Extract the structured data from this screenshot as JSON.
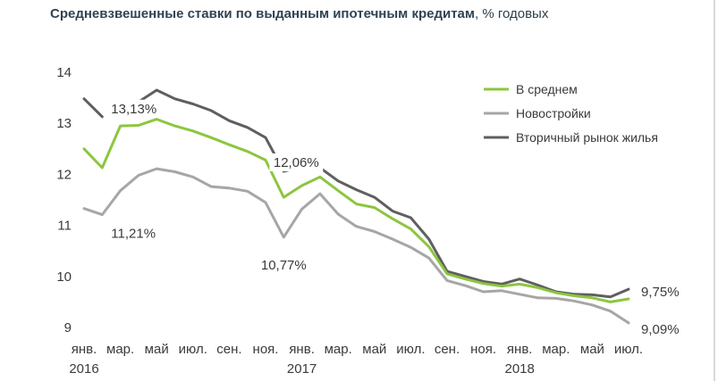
{
  "chart_data": {
    "type": "line",
    "title_bold": "Средневзвешенные ставки по выданным ипотечным кредитам",
    "title_rest": ", % годовых",
    "ylim": [
      9,
      14
    ],
    "yticks": [
      "9",
      "10",
      "11",
      "12",
      "13",
      "14"
    ],
    "x_month_labels": [
      "янв.",
      "мар.",
      "май",
      "июл.",
      "сен.",
      "ноя.",
      "янв.",
      "мар.",
      "май",
      "июл.",
      "сен.",
      "ноя.",
      "янв.",
      "мар.",
      "май",
      "июл."
    ],
    "x_year_labels": [
      "2016",
      "2017",
      "2018"
    ],
    "legend_position": "top-right",
    "series": [
      {
        "name": "В среднем",
        "color": "#8cc63f",
        "values": [
          12.5,
          12.13,
          12.95,
          12.96,
          13.08,
          12.95,
          12.85,
          12.72,
          12.58,
          12.45,
          12.28,
          11.55,
          11.78,
          11.95,
          11.68,
          11.42,
          11.35,
          11.13,
          10.93,
          10.58,
          10.05,
          9.95,
          9.86,
          9.81,
          9.85,
          9.78,
          9.68,
          9.62,
          9.58,
          9.5,
          9.56
        ]
      },
      {
        "name": "Новостройки",
        "color": "#a6a6a6",
        "values": [
          11.33,
          11.21,
          11.68,
          11.98,
          12.11,
          12.05,
          11.95,
          11.76,
          11.73,
          11.67,
          11.45,
          10.77,
          11.32,
          11.62,
          11.22,
          10.98,
          10.88,
          10.73,
          10.57,
          10.36,
          9.92,
          9.82,
          9.7,
          9.72,
          9.65,
          9.58,
          9.57,
          9.52,
          9.44,
          9.32,
          9.09
        ]
      },
      {
        "name": "Вторичный рынок жилья",
        "color": "#5f5f5f",
        "values": [
          13.48,
          13.13,
          null,
          13.42,
          13.65,
          13.48,
          13.38,
          13.25,
          13.05,
          12.92,
          12.72,
          12.06,
          12.15,
          12.13,
          11.87,
          11.7,
          11.55,
          11.28,
          11.15,
          10.73,
          10.1,
          10.0,
          9.9,
          9.85,
          9.95,
          9.83,
          9.7,
          9.65,
          9.64,
          9.6,
          9.75
        ]
      }
    ],
    "annotations": [
      {
        "text": "13,13%",
        "series": 2,
        "index": 1
      },
      {
        "text": "11,21%",
        "series": 1,
        "index": 1
      },
      {
        "text": "12,06%",
        "series": 2,
        "index": 11
      },
      {
        "text": "10,77%",
        "series": 1,
        "index": 11
      },
      {
        "text": "9,75%",
        "series": 2,
        "index": 30
      },
      {
        "text": "9,09%",
        "series": 1,
        "index": 30
      }
    ]
  }
}
